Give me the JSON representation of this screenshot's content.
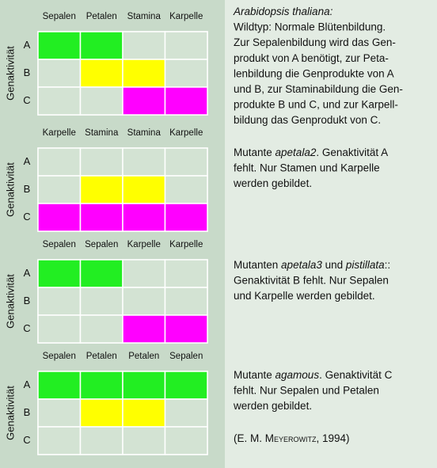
{
  "panels": [
    {
      "columns": [
        "Sepalen",
        "Petalen",
        "Stamina",
        "Karpelle"
      ],
      "rows": [
        "A",
        "B",
        "C"
      ],
      "y_label": "Genaktivität",
      "cells": [
        [
          "#22ee22",
          "#22ee22",
          null,
          null
        ],
        [
          null,
          "#ffff00",
          "#ffff00",
          null
        ],
        [
          null,
          null,
          "#ff00ff",
          "#ff00ff"
        ]
      ],
      "text": [
        [
          {
            "text": "Arabidopsis thaliana:",
            "italic": true
          }
        ],
        [
          {
            "text": "Wildtyp: Normale Blütenbildung."
          }
        ],
        [
          {
            "text": "Zur Sepalenbildung wird das Gen-"
          }
        ],
        [
          {
            "text": "produkt von A benötigt, zur Peta-"
          }
        ],
        [
          {
            "text": "lenbildung die Genprodukte von A"
          }
        ],
        [
          {
            "text": "und B, zur Staminabildung die Gen-"
          }
        ],
        [
          {
            "text": "produkte B und C, und zur Karpell-"
          }
        ],
        [
          {
            "text": "bildung das Genprodukt von C."
          }
        ]
      ]
    },
    {
      "columns": [
        "Karpelle",
        "Stamina",
        "Stamina",
        "Karpelle"
      ],
      "rows": [
        "A",
        "B",
        "C"
      ],
      "y_label": "Genaktivität",
      "cells": [
        [
          null,
          null,
          null,
          null
        ],
        [
          null,
          "#ffff00",
          "#ffff00",
          null
        ],
        [
          "#ff00ff",
          "#ff00ff",
          "#ff00ff",
          "#ff00ff"
        ]
      ],
      "text": [
        [
          {
            "text": "Mutante "
          },
          {
            "text": "apetala2",
            "italic": true
          },
          {
            "text": ". Genaktivität A"
          }
        ],
        [
          {
            "text": "fehlt. Nur Stamen und Karpelle"
          }
        ],
        [
          {
            "text": "werden gebildet."
          }
        ]
      ]
    },
    {
      "columns": [
        "Sepalen",
        "Sepalen",
        "Karpelle",
        "Karpelle"
      ],
      "rows": [
        "A",
        "B",
        "C"
      ],
      "y_label": "Genaktivität",
      "cells": [
        [
          "#22ee22",
          "#22ee22",
          null,
          null
        ],
        [
          null,
          null,
          null,
          null
        ],
        [
          null,
          null,
          "#ff00ff",
          "#ff00ff"
        ]
      ],
      "text": [
        [
          {
            "text": "Mutanten "
          },
          {
            "text": "apetala3",
            "italic": true
          },
          {
            "text": " und "
          },
          {
            "text": "pistillata",
            "italic": true
          },
          {
            "text": "::"
          }
        ],
        [
          {
            "text": "Genaktivität B fehlt. Nur Sepalen"
          }
        ],
        [
          {
            "text": "und Karpelle werden gebildet."
          }
        ]
      ]
    },
    {
      "columns": [
        "Sepalen",
        "Petalen",
        "Petalen",
        "Sepalen"
      ],
      "rows": [
        "A",
        "B",
        "C"
      ],
      "y_label": "Genaktivität",
      "cells": [
        [
          "#22ee22",
          "#22ee22",
          "#22ee22",
          "#22ee22"
        ],
        [
          null,
          "#ffff00",
          "#ffff00",
          null
        ],
        [
          null,
          null,
          null,
          null
        ]
      ],
      "text": [
        [
          {
            "text": "Mutante "
          },
          {
            "text": "agamous",
            "italic": true
          },
          {
            "text": ". Genaktivität C"
          }
        ],
        [
          {
            "text": "fehlt. Nur Sepalen und Petalen"
          }
        ],
        [
          {
            "text": "werden gebildet."
          }
        ]
      ]
    }
  ],
  "citation": [
    {
      "text": "(E. M. "
    },
    {
      "text": "Meyerowitz",
      "small_caps": true
    },
    {
      "text": ", 1994)"
    }
  ]
}
